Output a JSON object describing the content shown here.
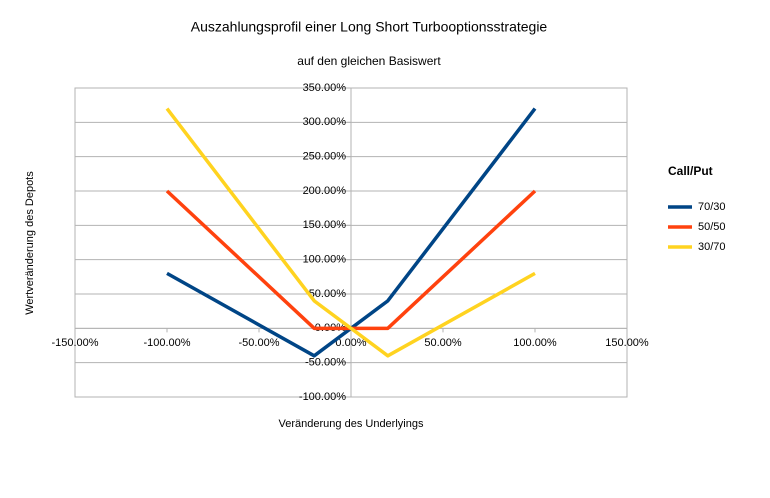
{
  "chart_data": {
    "type": "line",
    "title": "Auszahlungsprofil einer Long Short Turbooptionsstrategie",
    "subtitle": "auf den gleichen Basiswert",
    "x_label": "Veränderung des Underlyings",
    "y_label": "Wertveränderung des Depots",
    "legend_title": "Call/Put",
    "legend_position": "right",
    "grid": true,
    "x": [
      -100,
      -20,
      20,
      100
    ],
    "series": [
      {
        "name": "70/30",
        "color": "#004586",
        "values": [
          80,
          -40,
          40,
          320
        ]
      },
      {
        "name": "50/50",
        "color": "#ff420e",
        "values": [
          200,
          0,
          0,
          200
        ]
      },
      {
        "name": "30/70",
        "color": "#ffd320",
        "values": [
          320,
          40,
          -40,
          80
        ]
      }
    ],
    "xlim": [
      -150,
      150
    ],
    "xticks": [
      {
        "value": -150,
        "label": "-150.00%"
      },
      {
        "value": -100,
        "label": "-100.00%"
      },
      {
        "value": -50,
        "label": "-50.00%"
      },
      {
        "value": 0,
        "label": "0.00%"
      },
      {
        "value": 50,
        "label": "50.00%"
      },
      {
        "value": 100,
        "label": "100.00%"
      },
      {
        "value": 150,
        "label": "150.00%"
      }
    ],
    "ylim": [
      -100,
      350
    ],
    "yticks": [
      {
        "value": -100,
        "label": "-100.00%"
      },
      {
        "value": -50,
        "label": "-50.00%"
      },
      {
        "value": 0,
        "label": "0.00%"
      },
      {
        "value": 50,
        "label": "50.00%"
      },
      {
        "value": 100,
        "label": "100.00%"
      },
      {
        "value": 150,
        "label": "150.00%"
      },
      {
        "value": 200,
        "label": "200.00%"
      },
      {
        "value": 250,
        "label": "250.00%"
      },
      {
        "value": 300,
        "label": "300.00%"
      },
      {
        "value": 350,
        "label": "350.00%"
      }
    ]
  }
}
